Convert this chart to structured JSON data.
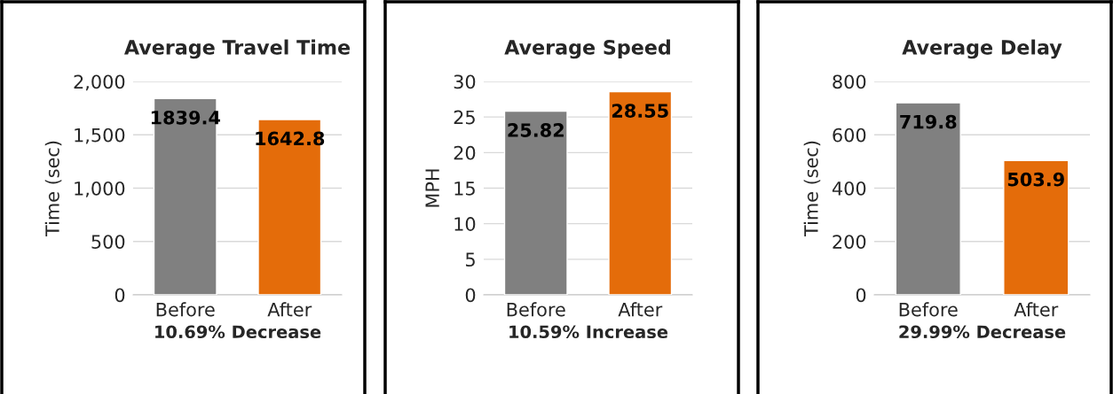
{
  "chart_data": [
    {
      "type": "bar",
      "title": "Average Travel Time",
      "ylabel": "Time (sec)",
      "xlabel": "10.69% Decrease",
      "categories": [
        "Before",
        "After"
      ],
      "values": [
        1839.4,
        1642.8
      ],
      "colors": [
        "#808080",
        "#e46c0a"
      ],
      "ylim": [
        0,
        2000
      ],
      "yticks": [
        0,
        500,
        {
          "value": 1000,
          "label": "1,000"
        },
        {
          "value": 1500,
          "label": "1,500"
        },
        {
          "value": 2000,
          "label": "2,000"
        }
      ],
      "grid": "y",
      "data_labels": true
    },
    {
      "type": "bar",
      "title": "Average Speed",
      "ylabel": "MPH",
      "xlabel": "10.59% Increase",
      "categories": [
        "Before",
        "After"
      ],
      "values": [
        25.82,
        28.55
      ],
      "colors": [
        "#808080",
        "#e46c0a"
      ],
      "ylim": [
        0,
        30
      ],
      "yticks": [
        0,
        5,
        10,
        15,
        20,
        25,
        30
      ],
      "grid": "y",
      "data_labels": true
    },
    {
      "type": "bar",
      "title": "Average Delay",
      "ylabel": "Time (sec)",
      "xlabel": "29.99% Decrease",
      "categories": [
        "Before",
        "After"
      ],
      "values": [
        719.8,
        503.9
      ],
      "colors": [
        "#808080",
        "#e46c0a"
      ],
      "ylim": [
        0,
        800
      ],
      "yticks": [
        0,
        200,
        400,
        600,
        800
      ],
      "grid": "y",
      "data_labels": true
    }
  ]
}
